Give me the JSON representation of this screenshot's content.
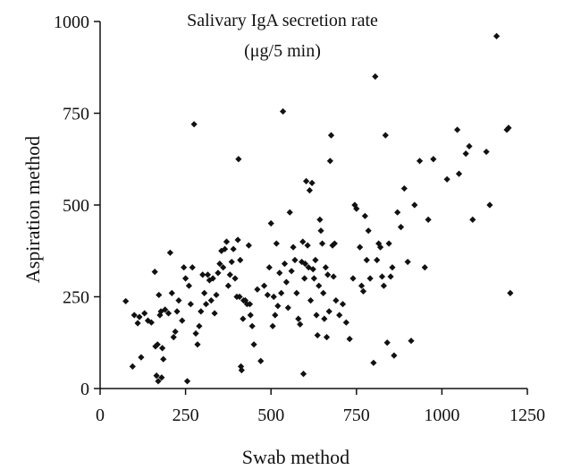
{
  "chart_data": {
    "type": "scatter",
    "title": "Salivary IgA secretion rate",
    "subtitle": "(μg/5 min)",
    "xlabel": "Swab method",
    "ylabel": "Aspiration method",
    "xlim": [
      0,
      1250
    ],
    "ylim": [
      0,
      1000
    ],
    "xticks": [
      "0",
      "250",
      "500",
      "750",
      "1000",
      "1250"
    ],
    "yticks": [
      "0",
      "250",
      "500",
      "750",
      "1000"
    ],
    "grid": false,
    "marker_color": "#111111",
    "series": [
      {
        "points": [
          [
            75,
            238
          ],
          [
            95,
            60
          ],
          [
            100,
            200
          ],
          [
            110,
            178
          ],
          [
            115,
            195
          ],
          [
            120,
            85
          ],
          [
            130,
            205
          ],
          [
            140,
            185
          ],
          [
            150,
            180
          ],
          [
            160,
            318
          ],
          [
            162,
            115
          ],
          [
            165,
            35
          ],
          [
            168,
            120
          ],
          [
            170,
            20
          ],
          [
            172,
            255
          ],
          [
            175,
            200
          ],
          [
            178,
            210
          ],
          [
            180,
            30
          ],
          [
            182,
            110
          ],
          [
            185,
            80
          ],
          [
            190,
            215
          ],
          [
            200,
            205
          ],
          [
            205,
            370
          ],
          [
            210,
            260
          ],
          [
            215,
            140
          ],
          [
            220,
            155
          ],
          [
            225,
            210
          ],
          [
            230,
            240
          ],
          [
            240,
            185
          ],
          [
            245,
            330
          ],
          [
            250,
            300
          ],
          [
            255,
            20
          ],
          [
            260,
            280
          ],
          [
            265,
            230
          ],
          [
            270,
            330
          ],
          [
            275,
            720
          ],
          [
            280,
            150
          ],
          [
            285,
            120
          ],
          [
            290,
            170
          ],
          [
            295,
            210
          ],
          [
            300,
            310
          ],
          [
            305,
            260
          ],
          [
            310,
            230
          ],
          [
            315,
            310
          ],
          [
            320,
            295
          ],
          [
            325,
            240
          ],
          [
            330,
            300
          ],
          [
            335,
            205
          ],
          [
            340,
            255
          ],
          [
            345,
            315
          ],
          [
            350,
            340
          ],
          [
            355,
            375
          ],
          [
            360,
            330
          ],
          [
            365,
            380
          ],
          [
            370,
            400
          ],
          [
            375,
            280
          ],
          [
            380,
            310
          ],
          [
            385,
            345
          ],
          [
            390,
            380
          ],
          [
            395,
            300
          ],
          [
            400,
            250
          ],
          [
            403,
            405
          ],
          [
            405,
            625
          ],
          [
            408,
            250
          ],
          [
            410,
            350
          ],
          [
            412,
            60
          ],
          [
            414,
            50
          ],
          [
            418,
            190
          ],
          [
            420,
            240
          ],
          [
            425,
            240
          ],
          [
            430,
            230
          ],
          [
            435,
            390
          ],
          [
            438,
            230
          ],
          [
            440,
            200
          ],
          [
            445,
            170
          ],
          [
            450,
            120
          ],
          [
            460,
            270
          ],
          [
            470,
            75
          ],
          [
            480,
            280
          ],
          [
            490,
            255
          ],
          [
            495,
            330
          ],
          [
            500,
            450
          ],
          [
            505,
            170
          ],
          [
            508,
            250
          ],
          [
            512,
            200
          ],
          [
            516,
            395
          ],
          [
            520,
            225
          ],
          [
            525,
            315
          ],
          [
            530,
            260
          ],
          [
            535,
            755
          ],
          [
            540,
            340
          ],
          [
            545,
            290
          ],
          [
            550,
            220
          ],
          [
            555,
            480
          ],
          [
            560,
            320
          ],
          [
            565,
            385
          ],
          [
            570,
            350
          ],
          [
            575,
            260
          ],
          [
            580,
            190
          ],
          [
            585,
            175
          ],
          [
            590,
            345
          ],
          [
            593,
            400
          ],
          [
            595,
            40
          ],
          [
            598,
            300
          ],
          [
            600,
            340
          ],
          [
            603,
            565
          ],
          [
            607,
            390
          ],
          [
            610,
            330
          ],
          [
            613,
            540
          ],
          [
            616,
            240
          ],
          [
            620,
            560
          ],
          [
            623,
            325
          ],
          [
            626,
            300
          ],
          [
            630,
            350
          ],
          [
            633,
            200
          ],
          [
            636,
            145
          ],
          [
            640,
            280
          ],
          [
            643,
            460
          ],
          [
            646,
            430
          ],
          [
            650,
            395
          ],
          [
            653,
            260
          ],
          [
            656,
            190
          ],
          [
            660,
            330
          ],
          [
            663,
            140
          ],
          [
            666,
            310
          ],
          [
            670,
            210
          ],
          [
            673,
            620
          ],
          [
            676,
            690
          ],
          [
            680,
            390
          ],
          [
            683,
            305
          ],
          [
            686,
            395
          ],
          [
            690,
            240
          ],
          [
            700,
            200
          ],
          [
            710,
            230
          ],
          [
            720,
            180
          ],
          [
            730,
            135
          ],
          [
            740,
            300
          ],
          [
            745,
            500
          ],
          [
            750,
            490
          ],
          [
            760,
            385
          ],
          [
            765,
            280
          ],
          [
            770,
            265
          ],
          [
            775,
            470
          ],
          [
            780,
            350
          ],
          [
            785,
            430
          ],
          [
            790,
            300
          ],
          [
            800,
            70
          ],
          [
            805,
            850
          ],
          [
            810,
            350
          ],
          [
            815,
            395
          ],
          [
            820,
            385
          ],
          [
            825,
            305
          ],
          [
            830,
            280
          ],
          [
            835,
            690
          ],
          [
            840,
            125
          ],
          [
            845,
            395
          ],
          [
            850,
            305
          ],
          [
            855,
            330
          ],
          [
            860,
            90
          ],
          [
            870,
            480
          ],
          [
            880,
            440
          ],
          [
            890,
            545
          ],
          [
            900,
            345
          ],
          [
            910,
            130
          ],
          [
            920,
            500
          ],
          [
            935,
            620
          ],
          [
            950,
            330
          ],
          [
            960,
            460
          ],
          [
            975,
            625
          ],
          [
            1015,
            570
          ],
          [
            1045,
            705
          ],
          [
            1050,
            585
          ],
          [
            1070,
            640
          ],
          [
            1080,
            660
          ],
          [
            1090,
            460
          ],
          [
            1130,
            645
          ],
          [
            1140,
            500
          ],
          [
            1160,
            960
          ],
          [
            1190,
            705
          ],
          [
            1195,
            710
          ],
          [
            1200,
            260
          ]
        ]
      }
    ]
  }
}
